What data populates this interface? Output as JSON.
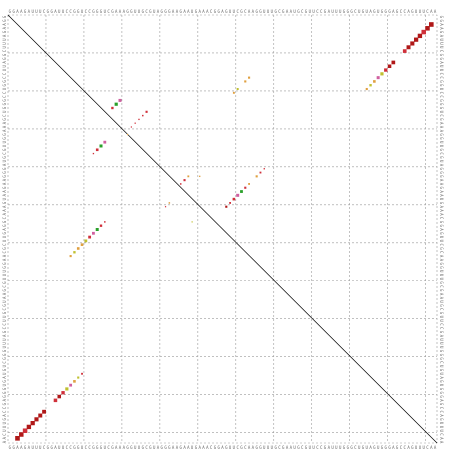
{
  "chart_data": {
    "type": "heatmap",
    "title": "",
    "sequence": "GGAAGAUUUCGGAUUCCGGUCCGGGUCGAAAGGUUGCGUAGGGAAGAAUGAAACGGAGUUCGCAAGGUUUGCGAAUGCGUUCCGAUUUGGGCUGUAGUGGGAGCCAGUUUCAACAGAGGUUGGCGGUUCUC",
    "axis": {
      "min": 1,
      "max": 113
    },
    "grid": true,
    "diagonal": true,
    "colors": {
      "high": "#b01818",
      "mid_high": "#d0303a",
      "mid": "#c0c030",
      "low_mid": "#e0a040",
      "low": "#2aa02a",
      "pink": "#d060a0"
    },
    "dots_upper": [
      {
        "i": 3,
        "j": 112,
        "p": 0.95,
        "c": "high"
      },
      {
        "i": 4,
        "j": 111,
        "p": 0.9,
        "c": "high"
      },
      {
        "i": 5,
        "j": 110,
        "p": 0.9,
        "c": "mid_high"
      },
      {
        "i": 6,
        "j": 109,
        "p": 0.85,
        "c": "high"
      },
      {
        "i": 7,
        "j": 108,
        "p": 0.8,
        "c": "high"
      },
      {
        "i": 8,
        "j": 107,
        "p": 0.75,
        "c": "high"
      },
      {
        "i": 9,
        "j": 106,
        "p": 0.7,
        "c": "high"
      },
      {
        "i": 10,
        "j": 105,
        "p": 0.6,
        "c": "mid_high"
      },
      {
        "i": 13,
        "j": 102,
        "p": 0.6,
        "c": "high"
      },
      {
        "i": 14,
        "j": 101,
        "p": 0.55,
        "c": "high"
      },
      {
        "i": 15,
        "j": 100,
        "p": 0.5,
        "c": "mid_high"
      },
      {
        "i": 16,
        "j": 99,
        "p": 0.45,
        "c": "mid"
      },
      {
        "i": 17,
        "j": 98,
        "p": 0.4,
        "c": "pink"
      },
      {
        "i": 18,
        "j": 97,
        "p": 0.3,
        "c": "low_mid"
      },
      {
        "i": 19,
        "j": 96,
        "p": 0.25,
        "c": "mid"
      },
      {
        "i": 20,
        "j": 95,
        "p": 0.2,
        "c": "low_mid"
      },
      {
        "i": 17,
        "j": 64,
        "p": 0.2,
        "c": "low_mid"
      },
      {
        "i": 18,
        "j": 63,
        "p": 0.2,
        "c": "low_mid"
      },
      {
        "i": 20,
        "j": 61,
        "p": 0.18,
        "c": "mid"
      },
      {
        "i": 21,
        "j": 60,
        "p": 0.16,
        "c": "low_mid"
      },
      {
        "i": 23,
        "j": 30,
        "p": 0.4,
        "c": "pink"
      },
      {
        "i": 24,
        "j": 29,
        "p": 0.45,
        "c": "low"
      },
      {
        "i": 25,
        "j": 28,
        "p": 0.25,
        "c": "mid_high"
      },
      {
        "i": 26,
        "j": 37,
        "p": 0.2,
        "c": "mid_high"
      },
      {
        "i": 27,
        "j": 36,
        "p": 0.1,
        "c": "mid_high"
      },
      {
        "i": 28,
        "j": 35,
        "p": 0.08,
        "c": "mid_high"
      },
      {
        "i": 29,
        "j": 34,
        "p": 0.07,
        "c": "mid_high"
      },
      {
        "i": 30,
        "j": 33,
        "p": 0.06,
        "c": "mid_high"
      },
      {
        "i": 32,
        "j": 32,
        "p": 0.03,
        "c": "low_mid"
      },
      {
        "i": 34,
        "j": 26,
        "p": 0.35,
        "c": "pink"
      },
      {
        "i": 35,
        "j": 25,
        "p": 0.4,
        "c": "low"
      },
      {
        "i": 36,
        "j": 24,
        "p": 0.3,
        "c": "mid_high"
      },
      {
        "i": 37,
        "j": 23,
        "p": 0.08,
        "c": "mid_high"
      },
      {
        "i": 43,
        "j": 48,
        "p": 0.15,
        "c": "low_mid"
      },
      {
        "i": 44,
        "j": 47,
        "p": 0.2,
        "c": "mid_high"
      },
      {
        "i": 45,
        "j": 46,
        "p": 0.1,
        "c": "mid_high"
      },
      {
        "i": 43,
        "j": 51,
        "p": 0.08,
        "c": "low_mid"
      },
      {
        "i": 50,
        "j": 43,
        "p": 0.1,
        "c": "low_mid"
      },
      {
        "i": 51,
        "j": 42,
        "p": 0.05,
        "c": "mid_high"
      },
      {
        "i": 55,
        "j": 49,
        "p": 0.03,
        "c": "mid"
      }
    ],
    "dots_lower": [
      {
        "i": 3,
        "j": 112,
        "p": 0.95,
        "c": "high"
      },
      {
        "i": 4,
        "j": 111,
        "p": 0.9,
        "c": "high"
      },
      {
        "i": 5,
        "j": 110,
        "p": 0.9,
        "c": "mid_high"
      },
      {
        "i": 6,
        "j": 109,
        "p": 0.85,
        "c": "high"
      },
      {
        "i": 7,
        "j": 108,
        "p": 0.8,
        "c": "high"
      },
      {
        "i": 8,
        "j": 107,
        "p": 0.75,
        "c": "high"
      },
      {
        "i": 9,
        "j": 106,
        "p": 0.7,
        "c": "high"
      },
      {
        "i": 10,
        "j": 105,
        "p": 0.65,
        "c": "high"
      },
      {
        "i": 13,
        "j": 102,
        "p": 0.55,
        "c": "mid_high"
      },
      {
        "i": 14,
        "j": 101,
        "p": 0.55,
        "c": "high"
      },
      {
        "i": 15,
        "j": 100,
        "p": 0.5,
        "c": "mid_high"
      },
      {
        "i": 16,
        "j": 99,
        "p": 0.45,
        "c": "mid"
      },
      {
        "i": 17,
        "j": 98,
        "p": 0.35,
        "c": "pink"
      },
      {
        "i": 18,
        "j": 97,
        "p": 0.3,
        "c": "low_mid"
      },
      {
        "i": 19,
        "j": 96,
        "p": 0.2,
        "c": "mid"
      },
      {
        "i": 20,
        "j": 95,
        "p": 0.15,
        "c": "mid_high"
      },
      {
        "i": 17,
        "j": 64,
        "p": 0.2,
        "c": "low_mid"
      },
      {
        "i": 18,
        "j": 63,
        "p": 0.25,
        "c": "mid"
      },
      {
        "i": 19,
        "j": 62,
        "p": 0.3,
        "c": "low_mid"
      },
      {
        "i": 20,
        "j": 61,
        "p": 0.3,
        "c": "low_mid"
      },
      {
        "i": 21,
        "j": 60,
        "p": 0.35,
        "c": "mid"
      },
      {
        "i": 22,
        "j": 59,
        "p": 0.35,
        "c": "mid_high"
      },
      {
        "i": 23,
        "j": 58,
        "p": 0.35,
        "c": "pink"
      },
      {
        "i": 24,
        "j": 57,
        "p": 0.4,
        "c": "low"
      },
      {
        "i": 25,
        "j": 56,
        "p": 0.25,
        "c": "mid_high"
      },
      {
        "i": 26,
        "j": 55,
        "p": 0.1,
        "c": "mid_high"
      },
      {
        "i": 58,
        "j": 51,
        "p": 0.2,
        "c": "high"
      },
      {
        "i": 59,
        "j": 50,
        "p": 0.15,
        "c": "mid_high"
      },
      {
        "i": 60,
        "j": 49,
        "p": 0.3,
        "c": "mid_high"
      },
      {
        "i": 61,
        "j": 48,
        "p": 0.4,
        "c": "pink"
      },
      {
        "i": 62,
        "j": 47,
        "p": 0.35,
        "c": "low"
      },
      {
        "i": 63,
        "j": 46,
        "p": 0.2,
        "c": "mid_high"
      },
      {
        "i": 64,
        "j": 45,
        "p": 0.15,
        "c": "low_mid"
      },
      {
        "i": 66,
        "j": 43,
        "p": 0.2,
        "c": "low_mid"
      },
      {
        "i": 67,
        "j": 42,
        "p": 0.15,
        "c": "mid_high"
      },
      {
        "i": 68,
        "j": 41,
        "p": 0.08,
        "c": "mid_high"
      }
    ]
  }
}
